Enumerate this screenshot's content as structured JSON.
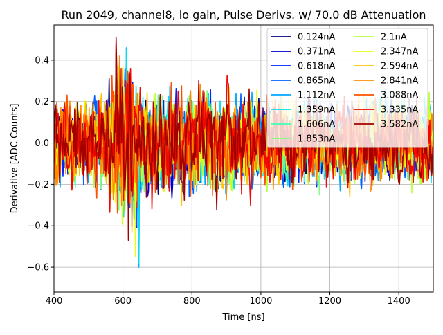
{
  "chart_data": {
    "type": "line",
    "title": "Run 2049, channel8, lo gain, Pulse Derivs. w/ 70.0 dB Attenuation",
    "xlabel": "Time [ns]",
    "ylabel": "Derivative [ADC Counts]",
    "xlim": [
      400,
      1500
    ],
    "ylim": [
      -0.72,
      0.57
    ],
    "xticks": [
      400,
      600,
      800,
      1000,
      1200,
      1400
    ],
    "xtick_labels": [
      "400",
      "600",
      "800",
      "1000",
      "1200",
      "1400"
    ],
    "yticks": [
      0.4,
      0.2,
      0.0,
      -0.2,
      -0.4,
      -0.6
    ],
    "ytick_labels": [
      "0.4",
      "0.2",
      "0.0",
      "−0.2",
      "−0.4",
      "−0.6"
    ],
    "grid": true,
    "legend_position": "top-right",
    "legend_columns": 2,
    "x_step": 2,
    "series": [
      {
        "name": "0.124nA",
        "color": "#000080",
        "peak_time": 600,
        "amplitude": 0.2,
        "min": -0.37,
        "max": 0.31
      },
      {
        "name": "0.371nA",
        "color": "#0000cd",
        "peak_time": 610,
        "amplitude": 0.2,
        "min": -0.42,
        "max": 0.3
      },
      {
        "name": "0.618nA",
        "color": "#0022ff",
        "peak_time": 615,
        "amplitude": 0.21,
        "min": -0.41,
        "max": 0.32
      },
      {
        "name": "0.865nA",
        "color": "#0060ff",
        "peak_time": 615,
        "amplitude": 0.21,
        "min": -0.4,
        "max": 0.36
      },
      {
        "name": "1.112nA",
        "color": "#00a8ff",
        "peak_time": 620,
        "amplitude": 0.22,
        "min": -0.6,
        "max": 0.46
      },
      {
        "name": "1.359nA",
        "color": "#00e0f0",
        "peak_time": 620,
        "amplitude": 0.22,
        "min": -0.58,
        "max": 0.45
      },
      {
        "name": "1.606nA",
        "color": "#40ffb7",
        "peak_time": 600,
        "amplitude": 0.22,
        "min": -0.38,
        "max": 0.34
      },
      {
        "name": "1.853nA",
        "color": "#7dff7a",
        "peak_time": 600,
        "amplitude": 0.22,
        "min": -0.4,
        "max": 0.35
      },
      {
        "name": "2.1nA",
        "color": "#b7ff40",
        "peak_time": 600,
        "amplitude": 0.22,
        "min": -0.4,
        "max": 0.36
      },
      {
        "name": "2.347nA",
        "color": "#e4ff13",
        "peak_time": 610,
        "amplitude": 0.22,
        "min": -0.55,
        "max": 0.37
      },
      {
        "name": "2.594nA",
        "color": "#ffc400",
        "peak_time": 600,
        "amplitude": 0.23,
        "min": -0.43,
        "max": 0.4
      },
      {
        "name": "2.841nA",
        "color": "#ff8d00",
        "peak_time": 600,
        "amplitude": 0.23,
        "min": -0.4,
        "max": 0.42
      },
      {
        "name": "3.088nA",
        "color": "#ff5200",
        "peak_time": 590,
        "amplitude": 0.24,
        "min": -0.42,
        "max": 0.45
      },
      {
        "name": "3.335nA",
        "color": "#f10800",
        "peak_time": 590,
        "amplitude": 0.24,
        "min": -0.47,
        "max": 0.48
      },
      {
        "name": "3.582nA",
        "color": "#a40000",
        "peak_time": 590,
        "amplitude": 0.25,
        "min": -0.47,
        "max": 0.51
      }
    ]
  }
}
